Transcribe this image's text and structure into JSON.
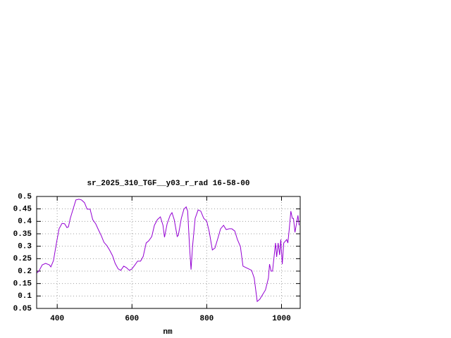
{
  "chart_data": {
    "type": "line",
    "title": "sr_2025_310_TGF__y03_r_rad 16-58-00",
    "xlabel": "nm",
    "x": [
      345,
      351,
      360,
      369,
      379,
      383,
      390,
      398,
      405,
      413,
      420,
      426,
      430,
      435,
      443,
      450,
      458,
      465,
      473,
      480,
      488,
      495,
      503,
      510,
      518,
      525,
      533,
      540,
      548,
      555,
      563,
      570,
      578,
      585,
      593,
      600,
      608,
      615,
      623,
      630,
      638,
      645,
      653,
      660,
      668,
      676,
      683,
      687,
      694,
      702,
      707,
      713,
      721,
      724,
      732,
      739,
      745,
      749,
      754,
      758,
      762,
      769,
      777,
      784,
      792,
      800,
      807,
      815,
      822,
      830,
      837,
      845,
      852,
      860,
      867,
      875,
      882,
      890,
      897,
      905,
      912,
      920,
      927,
      935,
      942,
      950,
      957,
      965,
      968,
      972,
      976,
      984,
      987,
      991,
      995,
      998,
      1002,
      1006,
      1014,
      1017,
      1021,
      1025,
      1029,
      1032,
      1036,
      1040,
      1044,
      1047
    ],
    "series": [
      {
        "color": "#9400d3",
        "values": [
          0.192,
          0.2,
          0.225,
          0.231,
          0.225,
          0.217,
          0.242,
          0.313,
          0.37,
          0.392,
          0.39,
          0.375,
          0.378,
          0.412,
          0.452,
          0.486,
          0.489,
          0.486,
          0.475,
          0.449,
          0.449,
          0.407,
          0.39,
          0.367,
          0.342,
          0.316,
          0.302,
          0.285,
          0.262,
          0.231,
          0.209,
          0.203,
          0.22,
          0.214,
          0.203,
          0.209,
          0.225,
          0.24,
          0.24,
          0.259,
          0.313,
          0.322,
          0.339,
          0.384,
          0.407,
          0.418,
          0.384,
          0.336,
          0.39,
          0.424,
          0.435,
          0.407,
          0.339,
          0.344,
          0.412,
          0.449,
          0.458,
          0.441,
          0.299,
          0.206,
          0.299,
          0.412,
          0.446,
          0.441,
          0.412,
          0.401,
          0.356,
          0.285,
          0.293,
          0.333,
          0.37,
          0.384,
          0.367,
          0.37,
          0.37,
          0.361,
          0.327,
          0.299,
          0.22,
          0.214,
          0.209,
          0.203,
          0.172,
          0.078,
          0.087,
          0.107,
          0.124,
          0.172,
          0.228,
          0.2,
          0.2,
          0.313,
          0.257,
          0.313,
          0.265,
          0.327,
          0.228,
          0.313,
          0.327,
          0.313,
          0.373,
          0.441,
          0.412,
          0.412,
          0.356,
          0.39,
          0.424,
          0.384
        ]
      }
    ],
    "xlim": [
      345,
      1050
    ],
    "ylim": [
      0.05,
      0.5
    ],
    "xticks": [
      400,
      600,
      800,
      1000
    ],
    "yticks": [
      0.05,
      0.1,
      0.15,
      0.2,
      0.25,
      0.3,
      0.35,
      0.4,
      0.45,
      0.5
    ],
    "grid": true
  }
}
